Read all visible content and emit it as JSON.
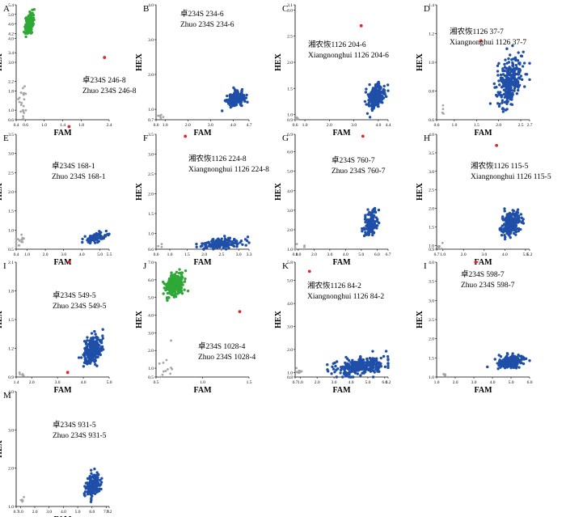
{
  "figure": {
    "colors": {
      "blue": "#1f4fa8",
      "green": "#2ea836",
      "grey": "#a6a6a6",
      "red": "#e0262b",
      "axis": "#000000"
    },
    "xlabel": "FAM",
    "ylabel": "HEX"
  },
  "chart_data": [
    {
      "type": "scatter",
      "panel": "A",
      "line1": "卓234S 246-8",
      "line2": "Zhuo 234S 246-8",
      "xlabel": "FAM",
      "ylabel": "HEX",
      "x_ticks": [
        0.4,
        0.6,
        1.0,
        1.4,
        1.8,
        2.4
      ],
      "y_ticks": [
        0.6,
        1.0,
        1.8,
        2.2,
        3.0,
        3.4,
        4.0,
        4.2,
        4.6,
        5.0,
        5.4
      ],
      "clusters": [
        {
          "color": "green",
          "cx": 0.68,
          "cy": 4.6,
          "sx": 0.04,
          "sy": 0.18,
          "n": 260
        },
        {
          "color": "grey",
          "cx": 0.55,
          "cy": 1.3,
          "sx": 0.04,
          "sy": 0.45,
          "n": 22
        }
      ],
      "red_point": [
        2.3,
        3.2
      ]
    },
    {
      "type": "scatter",
      "panel": "B",
      "line1": "卓234S 234-6",
      "line2": "Zhuo 234S 234-6",
      "xlabel": "FAM",
      "ylabel": "HEX",
      "x_ticks": [
        0.6,
        1.0,
        2.0,
        3.0,
        4.0,
        4.7
      ],
      "y_ticks": [
        0.7,
        1.0,
        2.0,
        3.0,
        4.0
      ],
      "clusters": [
        {
          "color": "blue",
          "cx": 4.1,
          "cy": 1.3,
          "sx": 0.18,
          "sy": 0.09,
          "n": 240
        },
        {
          "color": "grey",
          "cx": 0.8,
          "cy": 0.82,
          "sx": 0.06,
          "sy": 0.05,
          "n": 6
        }
      ],
      "red_point": [
        2.0,
        4.4
      ]
    },
    {
      "type": "scatter",
      "panel": "C",
      "line1": "湘农恢1126 204-6",
      "line2": "Xiangnonghui 1126 204-6",
      "xlabel": "FAM",
      "ylabel": "HEX",
      "x_ticks": [
        0.6,
        1.0,
        2.0,
        3.0,
        4.0,
        4.4
      ],
      "y_ticks": [
        0.9,
        1.0,
        1.5,
        2.0,
        2.5,
        3.0,
        3.1
      ],
      "clusters": [
        {
          "color": "blue",
          "cx": 3.9,
          "cy": 1.35,
          "sx": 0.16,
          "sy": 0.1,
          "n": 230
        },
        {
          "color": "grey",
          "cx": 0.7,
          "cy": 0.93,
          "sx": 0.05,
          "sy": 0.02,
          "n": 4
        }
      ],
      "red_point": [
        3.3,
        2.7
      ]
    },
    {
      "type": "scatter",
      "panel": "D",
      "line1": "湘农恢1126 37-7",
      "line2": "Xiangnonghui 1126 37-7",
      "xlabel": "FAM",
      "ylabel": "HEX",
      "x_ticks": [
        0.6,
        1.0,
        1.5,
        2.0,
        2.5,
        2.7
      ],
      "y_ticks": [
        0.6,
        0.8,
        1.0,
        1.2,
        1.4
      ],
      "clusters": [
        {
          "color": "blue",
          "cx": 2.25,
          "cy": 0.87,
          "sx": 0.16,
          "sy": 0.08,
          "n": 280
        },
        {
          "color": "grey",
          "cx": 0.72,
          "cy": 0.66,
          "sx": 0.08,
          "sy": 0.03,
          "n": 5
        }
      ],
      "red_point": [
        1.6,
        1.15
      ]
    },
    {
      "type": "scatter",
      "panel": "E",
      "line1": "卓234S 168-1",
      "line2": "Zhuo 234S 168-1",
      "xlabel": "FAM",
      "ylabel": "HEX",
      "x_ticks": [
        0.4,
        1.0,
        2.0,
        3.0,
        4.0,
        5.0,
        5.5
      ],
      "y_ticks": [
        0.5,
        1.0,
        1.5,
        2.0,
        2.5,
        3.0,
        3.5
      ],
      "clusters": [
        {
          "color": "blue",
          "cx": 4.7,
          "cy": 0.8,
          "sx": 0.3,
          "sy": 0.06,
          "n": 90
        },
        {
          "color": "grey",
          "cx": 0.6,
          "cy": 0.65,
          "sx": 0.12,
          "sy": 0.1,
          "n": 14
        }
      ],
      "red_point": [
        3.3,
        3.7
      ]
    },
    {
      "type": "scatter",
      "panel": "F",
      "line1": "湘农恢1126 224-8",
      "line2": "Xiangnonghui 1126 224-8",
      "xlabel": "FAM",
      "ylabel": "HEX",
      "x_ticks": [
        0.6,
        1.0,
        1.5,
        2.0,
        2.5,
        3.0,
        3.3
      ],
      "y_ticks": [
        0.6,
        1.0,
        1.5,
        2.0,
        2.5,
        3.0,
        3.5
      ],
      "clusters": [
        {
          "color": "blue",
          "cx": 2.5,
          "cy": 0.75,
          "sx": 0.32,
          "sy": 0.06,
          "n": 170
        },
        {
          "color": "grey",
          "cx": 0.7,
          "cy": 0.65,
          "sx": 0.05,
          "sy": 0.02,
          "n": 3
        }
      ],
      "red_point": [
        1.45,
        3.45
      ]
    },
    {
      "type": "scatter",
      "panel": "G",
      "line1": "卓234S 760-7",
      "line2": "Zhuo 234S 760-7",
      "xlabel": "FAM",
      "ylabel": "HEX",
      "x_ticks": [
        0.8,
        1.0,
        2.0,
        3.0,
        4.0,
        5.0,
        6.0,
        6.7
      ],
      "y_ticks": [
        1.0,
        2.0,
        3.0,
        4.0,
        5.0,
        6.0,
        6.9
      ],
      "clusters": [
        {
          "color": "blue",
          "cx": 5.6,
          "cy": 2.3,
          "sx": 0.22,
          "sy": 0.35,
          "n": 140
        },
        {
          "color": "grey",
          "cx": 1.2,
          "cy": 1.1,
          "sx": 0.3,
          "sy": 0.08,
          "n": 6
        }
      ],
      "red_point": [
        5.1,
        6.8
      ]
    },
    {
      "type": "scatter",
      "panel": "H",
      "line1": "湘农恢1126 115-5",
      "line2": "Xiangnonghui 1126 115-5",
      "xlabel": "FAM",
      "ylabel": "HEX",
      "x_ticks": [
        0.7,
        1.0,
        2.0,
        3.0,
        4.0,
        5.0,
        5.2
      ],
      "y_ticks": [
        0.9,
        1.0,
        1.5,
        2.0,
        2.5,
        3.0,
        3.5,
        4.0
      ],
      "clusters": [
        {
          "color": "blue",
          "cx": 4.3,
          "cy": 1.6,
          "sx": 0.2,
          "sy": 0.15,
          "n": 230
        },
        {
          "color": "grey",
          "cx": 0.85,
          "cy": 1.0,
          "sx": 0.08,
          "sy": 0.06,
          "n": 6
        }
      ],
      "red_point": [
        3.6,
        3.7
      ]
    },
    {
      "type": "scatter",
      "panel": "I",
      "line1": "卓234S 549-5",
      "line2": "Zhuo 234S 549-5",
      "xlabel": "FAM",
      "ylabel": "HEX",
      "x_ticks": [
        1.4,
        2.0,
        3.0,
        4.0,
        5.0
      ],
      "y_ticks": [
        0.9,
        1.2,
        1.5,
        1.8,
        2.1
      ],
      "clusters": [
        {
          "color": "blue",
          "cx": 4.35,
          "cy": 1.17,
          "sx": 0.17,
          "sy": 0.07,
          "n": 250
        },
        {
          "color": "grey",
          "cx": 1.6,
          "cy": 0.93,
          "sx": 0.06,
          "sy": 0.02,
          "n": 5
        }
      ],
      "red_point": [
        3.45,
        2.1
      ]
    },
    {
      "type": "scatter",
      "panel": "J",
      "line1": "卓234S 1028-4",
      "line2": "Zhuo 234S 1028-4",
      "xlabel": "FAM",
      "ylabel": "HEX",
      "x_ticks": [
        0.5,
        1.0,
        1.5
      ],
      "y_ticks": [
        0.5,
        1.0,
        2.0,
        3.0,
        4.0,
        5.0,
        6.0,
        7.0
      ],
      "clusters": [
        {
          "color": "green",
          "cx": 0.7,
          "cy": 5.7,
          "sx": 0.05,
          "sy": 0.3,
          "n": 250
        },
        {
          "color": "grey",
          "cx": 0.62,
          "cy": 1.2,
          "sx": 0.04,
          "sy": 0.7,
          "n": 12
        }
      ],
      "red_point": [
        1.4,
        4.2
      ]
    },
    {
      "type": "scatter",
      "panel": "K",
      "line1": "湘农恢1126 84-2",
      "line2": "Xiangnonghui 1126 84-2",
      "xlabel": "FAM",
      "ylabel": "HEX",
      "x_ticks": [
        0.7,
        1.0,
        2.0,
        3.0,
        4.0,
        5.0,
        6.0,
        6.2
      ],
      "y_ticks": [
        0.8,
        1.0,
        2.0,
        3.0,
        4.0,
        5.0,
        5.8
      ],
      "clusters": [
        {
          "color": "blue",
          "cx": 4.5,
          "cy": 1.25,
          "sx": 0.8,
          "sy": 0.18,
          "n": 280
        },
        {
          "color": "grey",
          "cx": 0.9,
          "cy": 1.05,
          "sx": 0.08,
          "sy": 0.12,
          "n": 10
        }
      ],
      "red_point": [
        1.55,
        5.4
      ]
    },
    {
      "type": "scatter",
      "panel": "I",
      "line1": "卓234S 598-7",
      "line2": "Zhuo 234S 598-7",
      "xlabel": "FAM",
      "ylabel": "HEX",
      "x_ticks": [
        1.0,
        2.0,
        3.0,
        4.0,
        5.0,
        6.0
      ],
      "y_ticks": [
        1.0,
        1.5,
        2.0,
        2.5,
        3.0,
        3.5,
        4.0
      ],
      "clusters": [
        {
          "color": "blue",
          "cx": 5.0,
          "cy": 1.4,
          "sx": 0.35,
          "sy": 0.08,
          "n": 230
        },
        {
          "color": "grey",
          "cx": 1.35,
          "cy": 1.05,
          "sx": 0.12,
          "sy": 0.04,
          "n": 5
        }
      ],
      "red_point": [
        3.1,
        4.0
      ]
    },
    {
      "type": "scatter",
      "panel": "M",
      "line1": "卓234S 931-5",
      "line2": "Zhuo 234S 931-5",
      "xlabel": "FAM",
      "ylabel": "HEX",
      "x_ticks": [
        0.7,
        1.0,
        2.0,
        3.0,
        4.0,
        5.0,
        6.0,
        7.0,
        7.2
      ],
      "y_ticks": [
        1.0,
        2.0,
        3.0,
        4.0
      ],
      "clusters": [
        {
          "color": "blue",
          "cx": 6.1,
          "cy": 1.55,
          "sx": 0.25,
          "sy": 0.14,
          "n": 170
        },
        {
          "color": "grey",
          "cx": 1.05,
          "cy": 1.15,
          "sx": 0.22,
          "sy": 0.05,
          "n": 5
        }
      ],
      "red_point": [
        4.3,
        4.5
      ]
    }
  ]
}
